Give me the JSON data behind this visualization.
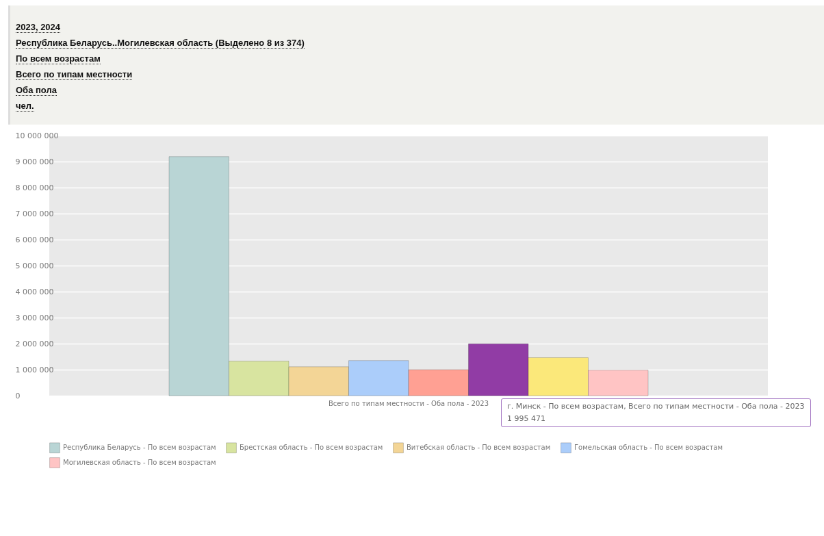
{
  "chart_data": {
    "type": "bar",
    "title": "2023, 2024",
    "subtitle": "Республика Беларусь..Могилевская область (Выделено 8 из 374)\nПо всем возрастам\nВсего по типам местности\nОба пола\nчел.",
    "categories": [
      "Всего по типам местности - Оба пола - 2023"
    ],
    "series": [
      {
        "name": "Республика Беларусь - По всем возрастам",
        "color": "#b9d5d5",
        "values": [
          9190000
        ]
      },
      {
        "name": "Брестская область - По всем возрастам",
        "color": "#d8e4a0",
        "values": [
          1330000
        ]
      },
      {
        "name": "Витебская область - По всем возрастам",
        "color": "#f3d596",
        "values": [
          1110000
        ]
      },
      {
        "name": "Гомельская область - По всем возрастам",
        "color": "#abcdfa",
        "values": [
          1350000
        ]
      },
      {
        "color": "#ffa093",
        "values": [
          1000000
        ]
      },
      {
        "color": "#913ca5",
        "values": [
          1995471
        ]
      },
      {
        "color": "#fbe87a",
        "values": [
          1460000
        ]
      },
      {
        "name": "Могилевская область - По всем возрастам",
        "color": "#ffc4c4",
        "values": [
          980000
        ]
      }
    ],
    "ylim": [
      0,
      10000000
    ],
    "yticks": [
      0,
      1000000,
      2000000,
      3000000,
      4000000,
      5000000,
      6000000,
      7000000,
      8000000,
      9000000,
      10000000
    ],
    "grid": "y",
    "legend": "bottom",
    "annotations": [
      "г. Минск - По всем возрастам, Всего по типам местности - Оба пола - 2023\n1 995 471"
    ]
  }
}
